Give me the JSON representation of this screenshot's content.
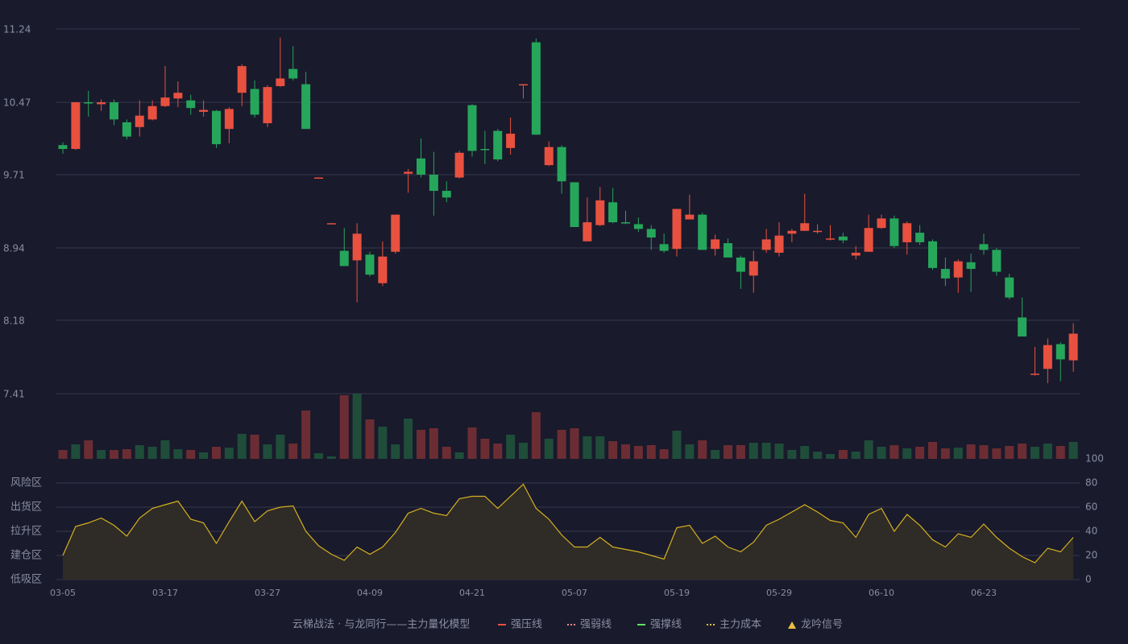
{
  "chart_data": [
    {
      "type": "candlestick",
      "open": [
        10.02,
        9.98,
        10.47,
        10.45,
        10.47,
        10.26,
        10.21,
        10.29,
        10.43,
        10.51,
        10.49,
        10.37,
        10.38,
        10.19,
        10.57,
        10.61,
        10.25,
        10.64,
        10.82,
        10.66,
        9.67,
        9.19,
        8.91,
        8.81,
        8.87,
        8.57,
        8.9,
        9.72,
        9.88,
        9.71,
        9.54,
        9.68,
        10.44,
        9.98,
        10.17,
        9.99,
        10.65,
        11.1,
        9.81,
        10.0,
        9.63,
        9.01,
        9.18,
        9.42,
        9.21,
        9.19,
        9.14,
        8.98,
        8.93,
        9.24,
        9.29,
        8.93,
        8.99,
        8.84,
        8.65,
        8.92,
        8.89,
        9.09,
        9.12,
        9.11,
        9.03,
        9.06,
        8.86,
        8.9,
        9.15,
        9.25,
        9.0,
        9.1,
        9.01,
        8.72,
        8.63,
        8.79,
        8.98,
        8.92,
        8.63,
        8.21,
        7.61,
        7.67,
        7.93,
        7.76
      ],
      "high": [
        10.05,
        10.47,
        10.59,
        10.5,
        10.5,
        10.29,
        10.49,
        10.49,
        10.85,
        10.69,
        10.55,
        10.49,
        10.39,
        10.42,
        10.87,
        10.7,
        10.65,
        11.15,
        11.06,
        10.79,
        9.68,
        9.2,
        9.15,
        9.2,
        8.9,
        9.01,
        9.29,
        9.77,
        10.09,
        9.95,
        9.64,
        9.96,
        10.45,
        10.17,
        10.19,
        10.31,
        10.66,
        11.14,
        10.06,
        10.02,
        9.63,
        9.47,
        9.58,
        9.57,
        9.33,
        9.26,
        9.18,
        9.09,
        9.35,
        9.5,
        9.31,
        9.08,
        9.04,
        8.86,
        8.91,
        9.14,
        9.21,
        9.14,
        9.51,
        9.19,
        9.18,
        9.1,
        8.96,
        9.29,
        9.29,
        9.28,
        9.22,
        9.18,
        9.03,
        8.84,
        8.82,
        8.88,
        9.09,
        8.94,
        8.67,
        8.42,
        7.9,
        7.99,
        7.95,
        8.15
      ],
      "low": [
        9.93,
        9.97,
        10.32,
        10.38,
        10.23,
        10.08,
        10.11,
        10.28,
        10.42,
        10.42,
        10.34,
        10.32,
        9.99,
        10.04,
        10.43,
        10.31,
        10.21,
        10.63,
        10.7,
        10.19,
        9.67,
        9.19,
        8.75,
        8.37,
        8.64,
        8.54,
        8.88,
        9.52,
        9.68,
        9.28,
        9.42,
        9.67,
        9.9,
        9.82,
        9.85,
        9.92,
        10.51,
        10.13,
        9.8,
        9.51,
        9.16,
        9.01,
        9.17,
        9.2,
        9.19,
        9.11,
        8.92,
        8.89,
        8.85,
        9.24,
        8.92,
        8.86,
        8.84,
        8.51,
        8.47,
        8.89,
        8.85,
        9.0,
        9.12,
        9.09,
        9.02,
        8.99,
        8.82,
        8.9,
        9.14,
        8.94,
        8.87,
        8.97,
        8.71,
        8.54,
        8.47,
        8.48,
        8.87,
        8.65,
        8.4,
        8.01,
        7.6,
        7.52,
        7.54,
        7.64
      ],
      "close": [
        9.98,
        10.47,
        10.46,
        10.47,
        10.29,
        10.11,
        10.33,
        10.43,
        10.52,
        10.57,
        10.41,
        10.39,
        10.03,
        10.4,
        10.85,
        10.34,
        10.63,
        10.72,
        10.72,
        10.19,
        9.68,
        9.2,
        8.75,
        9.09,
        8.66,
        8.85,
        9.29,
        9.74,
        9.71,
        9.54,
        9.47,
        9.94,
        9.96,
        9.97,
        9.87,
        10.14,
        10.66,
        10.13,
        10.0,
        9.64,
        9.16,
        9.21,
        9.44,
        9.21,
        9.2,
        9.14,
        9.05,
        8.91,
        9.35,
        9.29,
        8.92,
        9.03,
        8.84,
        8.69,
        8.8,
        9.03,
        9.07,
        9.12,
        9.2,
        9.12,
        9.04,
        9.02,
        8.89,
        9.15,
        9.25,
        8.96,
        9.2,
        9.0,
        8.73,
        8.62,
        8.8,
        8.72,
        8.92,
        8.69,
        8.42,
        8.01,
        7.62,
        7.92,
        7.77,
        8.04
      ],
      "up_color": "#e8513f",
      "down_color": "#26a65b",
      "ylim": [
        7.41,
        11.24
      ],
      "yticks": [
        7.41,
        8.18,
        8.94,
        9.71,
        10.47,
        11.24
      ],
      "grid": true
    },
    {
      "type": "bar",
      "values": [
        11,
        18,
        23,
        11,
        11,
        12,
        17,
        15,
        23,
        12,
        11,
        8,
        15,
        14,
        31,
        30,
        18,
        30,
        19,
        60,
        7,
        3,
        79,
        81,
        49,
        40,
        18,
        50,
        36,
        38,
        15,
        8,
        39,
        25,
        19,
        30,
        20,
        58,
        25,
        36,
        38,
        28,
        28,
        22,
        18,
        16,
        17,
        12,
        35,
        18,
        23,
        11,
        17,
        17,
        20,
        20,
        19,
        11,
        16,
        9,
        6,
        11,
        9,
        23,
        15,
        17,
        13,
        15,
        21,
        13,
        14,
        18,
        17,
        13,
        16,
        19,
        15,
        19,
        16,
        21
      ],
      "up_color": "#1f4d3a",
      "down_color": "#6b2d33",
      "ylim": [
        0,
        81
      ]
    },
    {
      "type": "area",
      "categories": [
        "03-05",
        null,
        null,
        null,
        null,
        null,
        null,
        null,
        "03-17",
        null,
        null,
        null,
        null,
        null,
        null,
        null,
        "03-27",
        null,
        null,
        null,
        null,
        null,
        null,
        null,
        "04-09",
        null,
        null,
        null,
        null,
        null,
        null,
        null,
        "04-21",
        null,
        null,
        null,
        null,
        null,
        null,
        null,
        "05-07",
        null,
        null,
        null,
        null,
        null,
        null,
        null,
        "05-19",
        null,
        null,
        null,
        null,
        null,
        null,
        null,
        "05-29",
        null,
        null,
        null,
        null,
        null,
        null,
        null,
        "06-10",
        null,
        null,
        null,
        null,
        null,
        null,
        null,
        "06-23",
        null,
        null,
        null,
        null,
        null,
        null,
        null
      ],
      "values": [
        20,
        44,
        47,
        51,
        45,
        36,
        51,
        59,
        62,
        65,
        50,
        47,
        30,
        48,
        65,
        48,
        57,
        60,
        61,
        40,
        28,
        21,
        16,
        27,
        21,
        27,
        39,
        55,
        59,
        55,
        53,
        67,
        69,
        69,
        59,
        69,
        79,
        59,
        50,
        37,
        27,
        27,
        35,
        27,
        25,
        23,
        20,
        17,
        43,
        45,
        30,
        36,
        27,
        23,
        31,
        45,
        50,
        56,
        62,
        56,
        49,
        47,
        35,
        54,
        59,
        40,
        54,
        45,
        33,
        27,
        38,
        35,
        46,
        35,
        26,
        19,
        14,
        26,
        23,
        35
      ],
      "color": "#d4b020",
      "fill": "#2f2b26",
      "ylim": [
        0,
        100
      ],
      "yticks": [
        0,
        20,
        40,
        60,
        80,
        100
      ],
      "ytick_colors": [
        "#e83838",
        "#e85a4a",
        "#4a90e2",
        "#d040d0",
        "#f0a030",
        "#40e040"
      ],
      "zones": [
        {
          "label": "低吸区",
          "value": 0,
          "color": "#e83838"
        },
        {
          "label": "建仓区",
          "value": 20,
          "color": "#e85a4a"
        },
        {
          "label": "拉升区",
          "value": 40,
          "color": "#4a90e2"
        },
        {
          "label": "出货区",
          "value": 60,
          "color": "#d040d0"
        },
        {
          "label": "风险区",
          "value": 80,
          "color": "#f0a030"
        }
      ],
      "grid": true
    }
  ],
  "legend": {
    "title": "云梯战法 · 与龙同行——主力量化模型",
    "title_color": "#e8c86a",
    "items": [
      {
        "name": "强压线",
        "color": "#e8513f",
        "style": "dash"
      },
      {
        "name": "强弱线",
        "color": "#f08a8a",
        "style": "dot"
      },
      {
        "name": "强撑线",
        "color": "#5ee35e",
        "style": "dash"
      },
      {
        "name": "主力成本",
        "color": "#e8c040",
        "style": "dot"
      },
      {
        "name": "龙吟信号",
        "color": "#e8c040",
        "style": "triangle"
      }
    ]
  }
}
